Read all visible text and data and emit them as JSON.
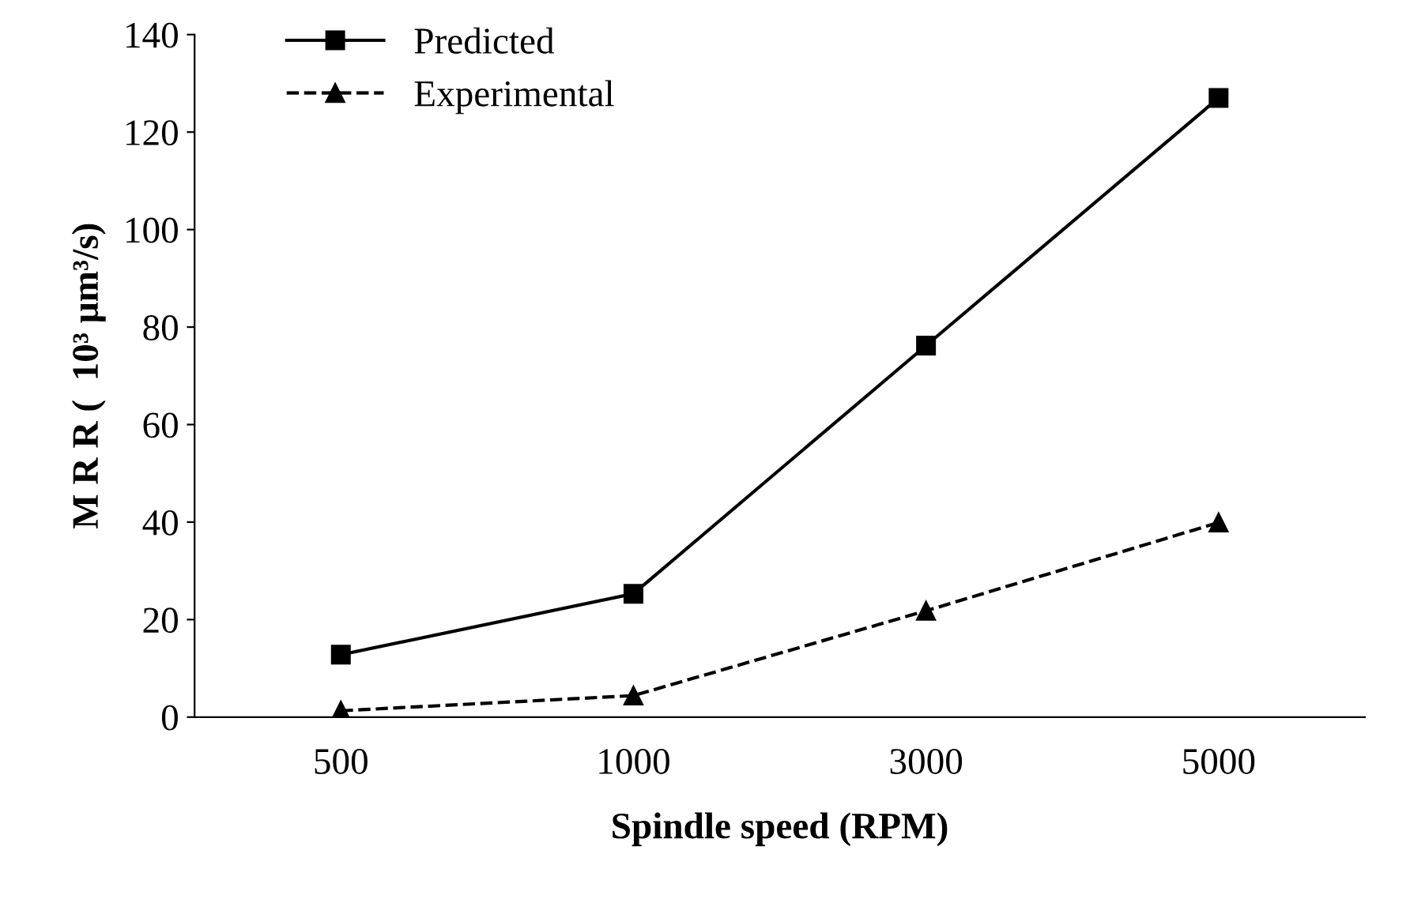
{
  "chart_data": {
    "type": "line",
    "xlabel": "Spindle speed (RPM)",
    "ylabel": "M R R (  10³ μm³/s)",
    "categories": [
      "500",
      "1000",
      "3000",
      "5000"
    ],
    "series": [
      {
        "name": "Predicted",
        "color": "#000000",
        "values": [
          12.8,
          25.3,
          76.2,
          127.0
        ],
        "marker": "square",
        "line_style": "solid"
      },
      {
        "name": "Experimental",
        "color": "#000000",
        "values": [
          1.3,
          4.4,
          21.8,
          39.9
        ],
        "marker": "triangle",
        "line_style": "dashed"
      }
    ],
    "ylim": [
      0,
      140
    ],
    "yticks": [
      0,
      20,
      40,
      60,
      80,
      100,
      120,
      140
    ],
    "grid": false,
    "legend": "top left"
  }
}
